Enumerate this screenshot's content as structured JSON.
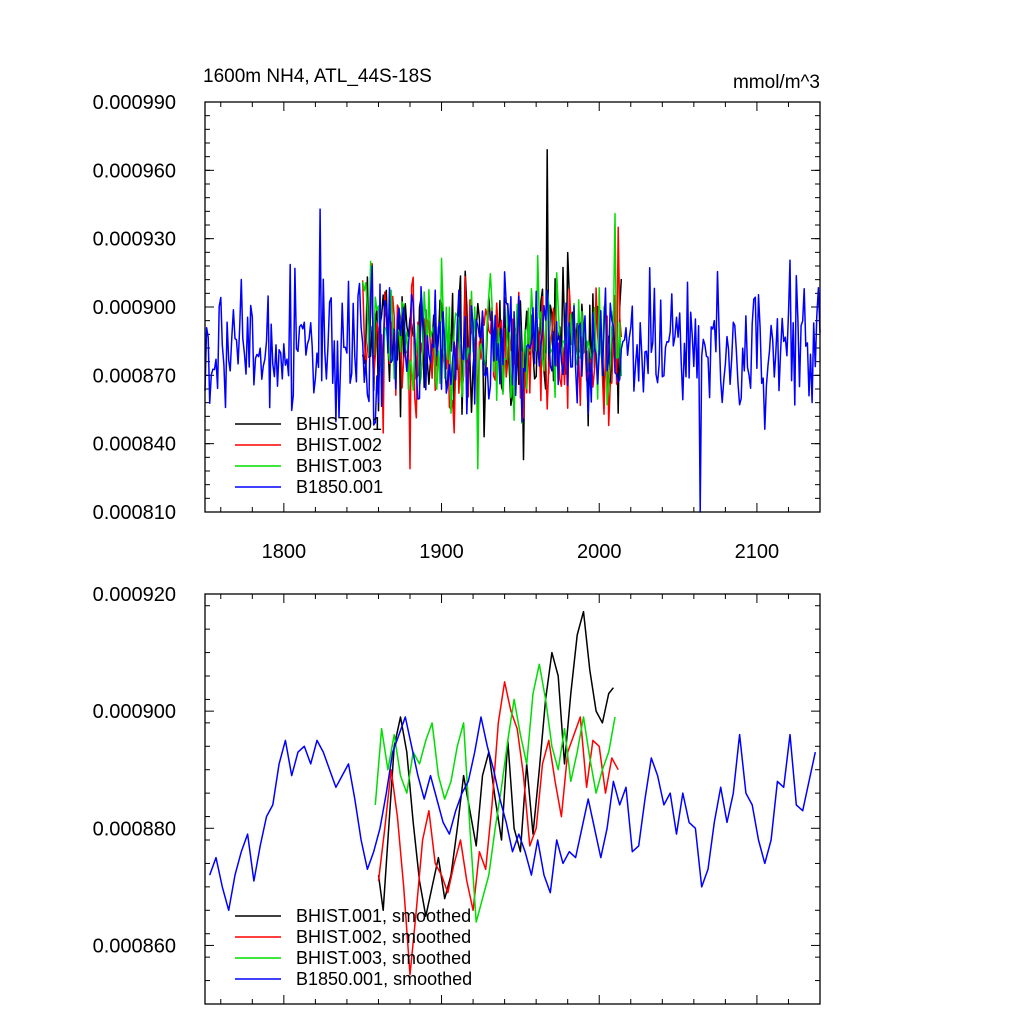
{
  "chart_data": [
    {
      "type": "line",
      "title": "1600m NH4, ATL_44S-18S",
      "units": "mmol/m^3",
      "xlim": [
        1750,
        2140
      ],
      "ylim": [
        0.00081,
        0.00099
      ],
      "xticks": [
        1800,
        1900,
        2000,
        2100
      ],
      "xtick_labels": [
        "1800",
        "1900",
        "2000",
        "2100"
      ],
      "yticks": [
        0.00081,
        0.00084,
        0.00087,
        0.0009,
        0.00093,
        0.00096,
        0.00099
      ],
      "ytick_labels": [
        "0.000810",
        "0.000840",
        "0.000870",
        "0.000900",
        "0.000930",
        "0.000960",
        "0.000990"
      ],
      "legend_position": "bottom-left",
      "series": [
        {
          "name": "BHIST.001",
          "color": "#000000",
          "x_start": 1850,
          "x_end": 2014,
          "mean": 0.000885,
          "amplitude": 2.2e-05,
          "peak": {
            "x": 1967,
            "y": 0.000969
          },
          "min": {
            "x": 1952,
            "y": 0.000833
          },
          "seed": 11
        },
        {
          "name": "BHIST.002",
          "color": "#ff0000",
          "x_start": 1850,
          "x_end": 2014,
          "mean": 0.000882,
          "amplitude": 2.2e-05,
          "peak": {
            "x": 2012,
            "y": 0.000935
          },
          "min": {
            "x": 1880,
            "y": 0.000829
          },
          "seed": 23
        },
        {
          "name": "BHIST.003",
          "color": "#00dd00",
          "x_start": 1850,
          "x_end": 2014,
          "mean": 0.000886,
          "amplitude": 2.2e-05,
          "peak": {
            "x": 2010,
            "y": 0.000941
          },
          "min": {
            "x": 1923,
            "y": 0.000829
          },
          "seed": 37
        },
        {
          "name": "B1850.001",
          "color": "#0000ff",
          "x_start": 1750,
          "x_end": 2140,
          "mean": 0.000882,
          "amplitude": 2.1e-05,
          "peak": {
            "x": 1823,
            "y": 0.000943
          },
          "min": {
            "x": 2064,
            "y": 0.00081
          },
          "seed": 53
        }
      ]
    },
    {
      "type": "line",
      "title": "",
      "xlim": [
        1750,
        2140
      ],
      "ylim": [
        0.00085,
        0.00092
      ],
      "xticks": [
        1800,
        1900,
        2000,
        2100
      ],
      "yticks": [
        0.00086,
        0.00088,
        0.0009,
        0.00092
      ],
      "ytick_labels": [
        "0.000860",
        "0.000880",
        "0.000900",
        "0.000920"
      ],
      "legend_position": "bottom-left",
      "series": [
        {
          "name": "BHIST.001, smoothed",
          "color": "#000000",
          "x": [
            1860,
            1863,
            1866,
            1870,
            1874,
            1878,
            1882,
            1886,
            1890,
            1894,
            1898,
            1902,
            1906,
            1910,
            1914,
            1918,
            1922,
            1926,
            1930,
            1934,
            1938,
            1942,
            1946,
            1950,
            1954,
            1958,
            1962,
            1966,
            1970,
            1974,
            1978,
            1982,
            1986,
            1990,
            1994,
            1998,
            2002,
            2006,
            2009
          ],
          "y": [
            0.000872,
            0.000866,
            0.000878,
            0.000894,
            0.000899,
            0.000893,
            0.000881,
            0.000871,
            0.000865,
            0.00087,
            0.000875,
            0.000868,
            0.000872,
            0.00088,
            0.000889,
            0.000883,
            0.000877,
            0.000889,
            0.000893,
            0.000885,
            0.000878,
            0.000895,
            0.00088,
            0.000876,
            0.000891,
            0.000879,
            0.00089,
            0.000902,
            0.00091,
            0.000906,
            0.000891,
            0.000903,
            0.000913,
            0.000917,
            0.000907,
            0.0009,
            0.000898,
            0.000903,
            0.000904
          ]
        },
        {
          "name": "BHIST.002, smoothed",
          "color": "#ff0000",
          "x": [
            1860,
            1864,
            1868,
            1872,
            1876,
            1880,
            1884,
            1888,
            1892,
            1896,
            1900,
            1904,
            1908,
            1912,
            1916,
            1920,
            1924,
            1928,
            1932,
            1936,
            1940,
            1944,
            1948,
            1952,
            1956,
            1960,
            1964,
            1968,
            1972,
            1976,
            1980,
            1984,
            1988,
            1992,
            1996,
            2000,
            2004,
            2008,
            2012
          ],
          "y": [
            0.000871,
            0.00088,
            0.00089,
            0.000882,
            0.00087,
            0.000855,
            0.000866,
            0.000878,
            0.000883,
            0.000874,
            0.000872,
            0.000869,
            0.000874,
            0.000878,
            0.000871,
            0.000866,
            0.000876,
            0.000873,
            0.000884,
            0.000898,
            0.000905,
            0.0009,
            0.000897,
            0.000889,
            0.000877,
            0.00088,
            0.000891,
            0.000895,
            0.000888,
            0.000882,
            0.000893,
            0.000896,
            0.000899,
            0.000887,
            0.000895,
            0.000894,
            0.000886,
            0.000892,
            0.00089
          ]
        },
        {
          "name": "BHIST.003, smoothed",
          "color": "#00dd00",
          "x": [
            1858,
            1862,
            1866,
            1870,
            1874,
            1878,
            1882,
            1886,
            1890,
            1894,
            1898,
            1902,
            1906,
            1910,
            1914,
            1918,
            1922,
            1926,
            1930,
            1934,
            1938,
            1942,
            1946,
            1950,
            1954,
            1958,
            1962,
            1966,
            1970,
            1974,
            1978,
            1982,
            1986,
            1990,
            1994,
            1998,
            2002,
            2006,
            2010
          ],
          "y": [
            0.000884,
            0.000897,
            0.00089,
            0.000896,
            0.000889,
            0.000886,
            0.000893,
            0.000891,
            0.000895,
            0.000898,
            0.000889,
            0.000885,
            0.000888,
            0.000894,
            0.000898,
            0.00088,
            0.000864,
            0.000868,
            0.000872,
            0.00088,
            0.000887,
            0.000895,
            0.000902,
            0.000896,
            0.000891,
            0.000903,
            0.000908,
            0.000902,
            0.000894,
            0.00089,
            0.000897,
            0.000888,
            0.000893,
            0.000899,
            0.000892,
            0.000886,
            0.00089,
            0.000893,
            0.000899
          ]
        },
        {
          "name": "B1850.001, smoothed",
          "color": "#0000ff",
          "x": [
            1753,
            1757,
            1761,
            1765,
            1769,
            1773,
            1777,
            1781,
            1785,
            1789,
            1793,
            1797,
            1801,
            1805,
            1809,
            1813,
            1817,
            1821,
            1825,
            1829,
            1833,
            1837,
            1841,
            1845,
            1849,
            1853,
            1857,
            1861,
            1865,
            1869,
            1873,
            1877,
            1881,
            1885,
            1889,
            1893,
            1897,
            1901,
            1905,
            1909,
            1913,
            1917,
            1921,
            1925,
            1929,
            1933,
            1937,
            1941,
            1945,
            1949,
            1953,
            1957,
            1961,
            1965,
            1969,
            1973,
            1977,
            1981,
            1985,
            1989,
            1993,
            1997,
            2001,
            2005,
            2009,
            2013,
            2017,
            2021,
            2025,
            2029,
            2033,
            2037,
            2041,
            2045,
            2049,
            2053,
            2057,
            2061,
            2065,
            2069,
            2073,
            2077,
            2081,
            2085,
            2089,
            2093,
            2097,
            2101,
            2105,
            2109,
            2113,
            2117,
            2121,
            2125,
            2129,
            2133,
            2137
          ],
          "y": [
            0.000872,
            0.000875,
            0.00087,
            0.000866,
            0.000872,
            0.000876,
            0.000879,
            0.000871,
            0.000877,
            0.000882,
            0.000884,
            0.000891,
            0.000895,
            0.000889,
            0.000893,
            0.000894,
            0.000891,
            0.000895,
            0.000893,
            0.00089,
            0.000887,
            0.000889,
            0.000891,
            0.000885,
            0.000878,
            0.000873,
            0.000876,
            0.00088,
            0.000886,
            0.000893,
            0.000896,
            0.000899,
            0.000894,
            0.000889,
            0.000885,
            0.000889,
            0.000885,
            0.000881,
            0.000879,
            0.000883,
            0.000886,
            0.000888,
            0.000893,
            0.000899,
            0.000894,
            0.00089,
            0.000885,
            0.000881,
            0.000876,
            0.000879,
            0.000876,
            0.000872,
            0.000878,
            0.000872,
            0.000869,
            0.000878,
            0.000874,
            0.000876,
            0.000875,
            0.00088,
            0.000885,
            0.00088,
            0.000875,
            0.00088,
            0.000888,
            0.000884,
            0.000887,
            0.000876,
            0.000877,
            0.000885,
            0.000892,
            0.000889,
            0.000884,
            0.000886,
            0.000879,
            0.000886,
            0.000881,
            0.00088,
            0.00087,
            0.000873,
            0.000881,
            0.000887,
            0.000881,
            0.000886,
            0.000896,
            0.000886,
            0.000884,
            0.000878,
            0.000874,
            0.000878,
            0.000888,
            0.000887,
            0.000896,
            0.000884,
            0.000883,
            0.000888,
            0.000893
          ]
        }
      ]
    }
  ]
}
